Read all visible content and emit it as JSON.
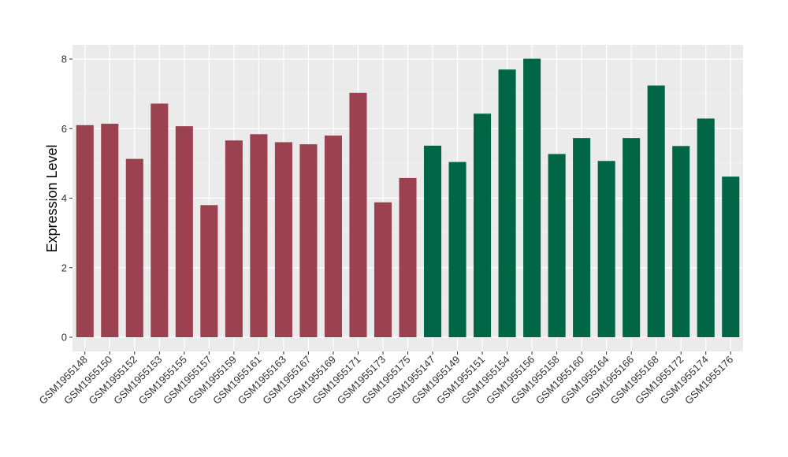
{
  "chart_data": {
    "type": "bar",
    "title": "",
    "xlabel": "",
    "ylabel": "Expression Level",
    "ylim": [
      0,
      8.4
    ],
    "yticks": [
      0,
      2,
      4,
      6,
      8
    ],
    "grid": true,
    "categories": [
      "GSM1955148",
      "GSM1955150",
      "GSM1955152",
      "GSM1955153",
      "GSM1955155",
      "GSM1955157",
      "GSM1955159",
      "GSM1955161",
      "GSM1955163",
      "GSM1955167",
      "GSM1955169",
      "GSM1955171",
      "GSM1955173",
      "GSM1955175",
      "GSM1955147",
      "GSM1955149",
      "GSM1955151",
      "GSM1955154",
      "GSM1955156",
      "GSM1955158",
      "GSM1955160",
      "GSM1955164",
      "GSM1955166",
      "GSM1955168",
      "GSM1955172",
      "GSM1955174",
      "GSM1955176"
    ],
    "values": [
      6.1,
      6.14,
      5.13,
      6.72,
      6.07,
      3.8,
      5.66,
      5.84,
      5.61,
      5.55,
      5.8,
      7.03,
      3.88,
      4.58,
      5.51,
      5.04,
      6.43,
      7.7,
      8.01,
      5.27,
      5.73,
      5.07,
      5.73,
      7.24,
      5.5,
      6.29,
      4.62
    ],
    "groups": [
      "a",
      "a",
      "a",
      "a",
      "a",
      "a",
      "a",
      "a",
      "a",
      "a",
      "a",
      "a",
      "a",
      "a",
      "b",
      "b",
      "b",
      "b",
      "b",
      "b",
      "b",
      "b",
      "b",
      "b",
      "b",
      "b",
      "b"
    ],
    "colors": {
      "a": "#9B4150",
      "b": "#006646"
    }
  }
}
